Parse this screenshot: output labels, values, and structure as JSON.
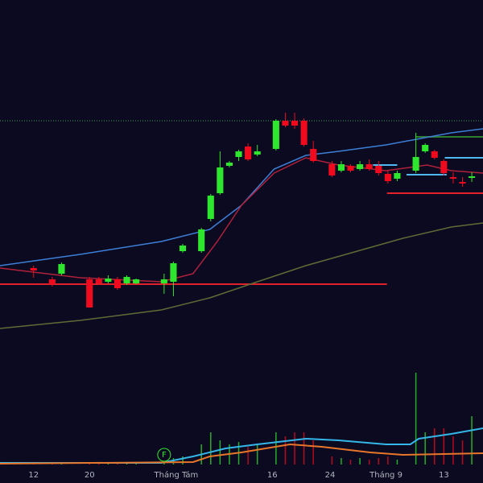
{
  "chart_data": {
    "type": "candlestick",
    "background": "#0b0a21",
    "xlim": [
      -3.6,
      48.2
    ],
    "ylim": [
      0,
      600
    ],
    "xticks": [
      {
        "value": 0,
        "label": "12"
      },
      {
        "value": 6,
        "label": "20"
      },
      {
        "value": 15.3,
        "label": "Tháng Tám"
      },
      {
        "value": 25.6,
        "label": "16"
      },
      {
        "value": 31.8,
        "label": "24"
      },
      {
        "value": 37.8,
        "label": "Tháng 9"
      },
      {
        "value": 44,
        "label": "13"
      }
    ],
    "up_color": "#2ee62e",
    "down_color": "#f00a1e",
    "x": [
      0,
      2,
      3,
      6,
      7,
      8,
      9,
      10,
      11,
      14,
      15,
      16,
      18,
      19,
      20,
      21,
      22,
      23,
      24,
      26,
      27,
      28,
      29,
      30,
      32,
      33,
      34,
      35,
      36,
      37,
      38,
      39,
      41,
      42,
      43,
      44,
      45,
      46,
      47
    ],
    "open": [
      267,
      253,
      260,
      253,
      253,
      250,
      253,
      248,
      248,
      248,
      250,
      288,
      288,
      328,
      360,
      394,
      405,
      418,
      408,
      415,
      450,
      450,
      450,
      415,
      396,
      388,
      394,
      390,
      396,
      394,
      384,
      378,
      388,
      412,
      412,
      400,
      380,
      374,
      379
    ],
    "high": [
      270,
      256,
      274,
      256,
      256,
      258,
      256,
      258,
      254,
      260,
      275,
      297,
      317,
      359,
      412,
      400,
      414,
      422,
      420,
      452,
      460,
      460,
      453,
      425,
      400,
      400,
      396,
      400,
      402,
      400,
      388,
      388,
      435,
      422,
      414,
      402,
      386,
      380,
      386
    ],
    "low": [
      255,
      244,
      258,
      218,
      246,
      248,
      240,
      246,
      247,
      235,
      232,
      286,
      286,
      325,
      358,
      392,
      400,
      400,
      406,
      413,
      442,
      440,
      418,
      398,
      380,
      386,
      386,
      388,
      388,
      382,
      372,
      375,
      385,
      410,
      402,
      382,
      372,
      368,
      374
    ],
    "close": [
      264,
      247,
      272,
      218,
      248,
      254,
      242,
      256,
      253,
      253,
      273,
      295,
      315,
      357,
      392,
      398,
      412,
      402,
      412,
      450,
      444,
      444,
      420,
      400,
      382,
      396,
      388,
      396,
      390,
      385,
      375,
      385,
      405,
      420,
      404,
      385,
      378,
      372,
      381
    ],
    "ma": [
      {
        "color": "#3d7fd6",
        "x": [
          -3.6,
          5.0,
          13.7,
          18.9,
          22.3,
          25.8,
          29.2,
          32.7,
          37.8,
          44.8,
          48.2
        ],
        "values": [
          270,
          284,
          300,
          315,
          345,
          390,
          407,
          412,
          420,
          435,
          440
        ]
      },
      {
        "color": "#b0213a",
        "x": [
          -3.6,
          5.0,
          13.7,
          17.1,
          19.7,
          22.3,
          25.8,
          29.2,
          32.7,
          37.8,
          42.2,
          44.8,
          48.2
        ],
        "values": [
          267,
          255,
          250,
          260,
          300,
          345,
          385,
          404,
          395,
          388,
          395,
          388,
          385
        ]
      },
      {
        "color": "#5f6b35",
        "x": [
          -3.6,
          5.0,
          13.7,
          18.9,
          24.0,
          29.2,
          34.4,
          39.6,
          44.8,
          48.2
        ],
        "values": [
          192,
          202,
          215,
          230,
          250,
          270,
          287,
          304,
          318,
          323
        ]
      }
    ],
    "levels": [
      {
        "value": 450,
        "x": [
          -3.6,
          48.2
        ],
        "color": "#3fa34d",
        "dash": true
      },
      {
        "value": 247,
        "x": [
          -3.6,
          37.9
        ],
        "color": "#e0202a",
        "dash": false
      },
      {
        "value": 360,
        "x": [
          37.9,
          48.2
        ],
        "color": "#e0202a",
        "dash": false
      },
      {
        "value": 395,
        "x": [
          36.4,
          39.0
        ],
        "color": "#4fb8f0",
        "dash": false
      },
      {
        "value": 383,
        "x": [
          40.0,
          44.3
        ],
        "color": "#4fb8f0",
        "dash": false
      },
      {
        "value": 404,
        "x": [
          44.1,
          48.2
        ],
        "color": "#4fb8f0",
        "dash": false
      },
      {
        "value": 430,
        "x": [
          41.0,
          48.2
        ],
        "color": "#2f7d2f",
        "dash": false
      }
    ],
    "volume": {
      "ylim": [
        0,
        127
      ],
      "values": [
        2,
        2,
        3,
        2,
        2,
        2,
        2,
        2,
        2,
        3,
        8,
        10,
        25,
        40,
        30,
        25,
        28,
        22,
        25,
        40,
        35,
        40,
        40,
        30,
        10,
        8,
        6,
        8,
        6,
        8,
        10,
        6,
        114,
        40,
        45,
        45,
        35,
        30,
        60
      ],
      "ma": [
        {
          "color": "#35b6e8",
          "x": [
            -3.6,
            13.7,
            17.1,
            20.6,
            24.0,
            29.2,
            32.7,
            37.8,
            40.4,
            41.3,
            44.8,
            48.2
          ],
          "values": [
            2,
            2,
            10,
            20,
            25,
            32,
            30,
            25,
            25,
            32,
            38,
            45
          ]
        },
        {
          "color": "#e8762a",
          "x": [
            -3.6,
            17.1,
            18.9,
            22.3,
            27.5,
            30.9,
            36.1,
            39.6,
            48.2
          ],
          "values": [
            1,
            3,
            10,
            15,
            25,
            22,
            15,
            12,
            14
          ]
        }
      ]
    },
    "markers": [
      {
        "x": 14,
        "label": "F",
        "color": "#2ee62e"
      }
    ]
  }
}
